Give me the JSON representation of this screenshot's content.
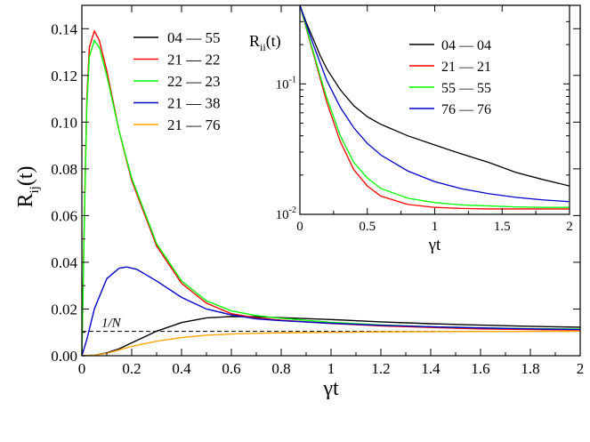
{
  "chart_data": [
    {
      "type": "line",
      "id": "main",
      "xlabel": "γt",
      "ylabel": "R",
      "ylabel_sub": "ij",
      "ylabel_tail": "(t)",
      "xlim": [
        0,
        2
      ],
      "ylim": [
        0,
        0.15
      ],
      "xticks": [
        0,
        0.2,
        0.4,
        0.6,
        0.8,
        1,
        1.2,
        1.4,
        1.6,
        1.8,
        2
      ],
      "xtick_labels": [
        "0",
        "0.2",
        "0.4",
        "0.6",
        "0.8",
        "1",
        "1.2",
        "1.4",
        "1.6",
        "1.8",
        "2"
      ],
      "yticks": [
        0,
        0.02,
        0.04,
        0.06,
        0.08,
        0.1,
        0.12,
        0.14
      ],
      "ytick_labels": [
        "0.00",
        "0.02",
        "0.04",
        "0.06",
        "0.08",
        "0.10",
        "0.12",
        "0.14"
      ],
      "legend_position": "top-left",
      "reference_line": {
        "y": 0.0104,
        "label": "1/N",
        "style": "dashed"
      },
      "series": [
        {
          "name": "04 — 55",
          "color": "#000000",
          "x": [
            0,
            0.05,
            0.1,
            0.15,
            0.2,
            0.3,
            0.4,
            0.5,
            0.6,
            0.7,
            0.8,
            1.0,
            1.2,
            1.4,
            1.6,
            1.8,
            2.0
          ],
          "y": [
            0,
            0.0002,
            0.0012,
            0.003,
            0.0055,
            0.0105,
            0.0142,
            0.0162,
            0.0168,
            0.0167,
            0.0163,
            0.0155,
            0.0145,
            0.0137,
            0.0131,
            0.0126,
            0.0122
          ]
        },
        {
          "name": "21 — 22",
          "color": "#ff0000",
          "x": [
            0,
            0.01,
            0.02,
            0.03,
            0.05,
            0.07,
            0.1,
            0.15,
            0.2,
            0.3,
            0.4,
            0.5,
            0.6,
            0.7,
            0.8,
            1.0,
            1.2,
            1.4,
            1.6,
            1.8,
            2.0
          ],
          "y": [
            0,
            0.06,
            0.11,
            0.132,
            0.139,
            0.135,
            0.122,
            0.096,
            0.075,
            0.047,
            0.031,
            0.0225,
            0.018,
            0.0162,
            0.0152,
            0.0138,
            0.0128,
            0.0121,
            0.0115,
            0.0112,
            0.011
          ]
        },
        {
          "name": "22 — 23",
          "color": "#00ff00",
          "x": [
            0,
            0.01,
            0.02,
            0.03,
            0.05,
            0.07,
            0.1,
            0.15,
            0.2,
            0.3,
            0.4,
            0.5,
            0.6,
            0.7,
            0.8,
            1.0,
            1.2,
            1.4,
            1.6,
            1.8,
            2.0
          ],
          "y": [
            0,
            0.058,
            0.107,
            0.128,
            0.135,
            0.132,
            0.12,
            0.096,
            0.076,
            0.048,
            0.032,
            0.0235,
            0.0192,
            0.0172,
            0.016,
            0.0143,
            0.0132,
            0.0124,
            0.0119,
            0.0116,
            0.0114
          ]
        },
        {
          "name": "21 — 38",
          "color": "#0000cc",
          "x": [
            0,
            0.02,
            0.05,
            0.1,
            0.15,
            0.18,
            0.22,
            0.3,
            0.4,
            0.5,
            0.6,
            0.7,
            0.8,
            1.0,
            1.2,
            1.4,
            1.6,
            1.8,
            2.0
          ],
          "y": [
            0,
            0.007,
            0.02,
            0.033,
            0.0375,
            0.038,
            0.037,
            0.032,
            0.025,
            0.02,
            0.0175,
            0.0158,
            0.015,
            0.0139,
            0.013,
            0.0124,
            0.0119,
            0.0115,
            0.0112
          ]
        },
        {
          "name": "21 — 76",
          "color": "#ffa500",
          "x": [
            0,
            0.05,
            0.1,
            0.15,
            0.2,
            0.3,
            0.4,
            0.5,
            0.6,
            0.7,
            0.8,
            1.0,
            1.2,
            1.4,
            1.6,
            1.8,
            2.0
          ],
          "y": [
            0,
            0.0002,
            0.001,
            0.0025,
            0.004,
            0.0062,
            0.0078,
            0.0088,
            0.0093,
            0.0096,
            0.0098,
            0.01,
            0.0102,
            0.0103,
            0.0104,
            0.0104,
            0.0105
          ]
        }
      ]
    },
    {
      "type": "line",
      "id": "inset",
      "xlabel": "γt",
      "ylabel": "R",
      "ylabel_sub": "ii",
      "ylabel_tail": "(t)",
      "xlim": [
        0,
        2
      ],
      "ylim_log": [
        0.01,
        0.4
      ],
      "yscale": "log",
      "xticks": [
        0,
        0.5,
        1,
        1.5,
        2
      ],
      "xtick_labels": [
        "0",
        "0.5",
        "1",
        "1.5",
        "2"
      ],
      "yticks": [
        0.01,
        0.1
      ],
      "ytick_base": "10",
      "ytick_exponents": [
        "-2",
        "-1"
      ],
      "legend_position": "top-right",
      "series": [
        {
          "name": "04 — 04",
          "color": "#000000",
          "x": [
            0,
            0.05,
            0.1,
            0.15,
            0.2,
            0.3,
            0.4,
            0.5,
            0.6,
            0.8,
            1.0,
            1.2,
            1.4,
            1.6,
            1.8,
            2.0
          ],
          "y": [
            0.4,
            0.29,
            0.22,
            0.165,
            0.13,
            0.09,
            0.068,
            0.056,
            0.049,
            0.04,
            0.034,
            0.029,
            0.025,
            0.021,
            0.0185,
            0.0165
          ]
        },
        {
          "name": "21 — 21",
          "color": "#ff0000",
          "x": [
            0,
            0.05,
            0.1,
            0.15,
            0.2,
            0.3,
            0.4,
            0.5,
            0.6,
            0.8,
            1.0,
            1.2,
            1.4,
            1.6,
            1.8,
            2.0
          ],
          "y": [
            0.4,
            0.26,
            0.17,
            0.11,
            0.072,
            0.036,
            0.022,
            0.0165,
            0.0138,
            0.0119,
            0.0113,
            0.0111,
            0.011,
            0.011,
            0.011,
            0.011
          ]
        },
        {
          "name": "55 — 55",
          "color": "#00ff00",
          "x": [
            0,
            0.05,
            0.1,
            0.15,
            0.2,
            0.3,
            0.4,
            0.5,
            0.6,
            0.8,
            1.0,
            1.2,
            1.4,
            1.6,
            1.8,
            2.0
          ],
          "y": [
            0.4,
            0.265,
            0.175,
            0.115,
            0.078,
            0.04,
            0.025,
            0.019,
            0.0158,
            0.0133,
            0.0123,
            0.0118,
            0.0116,
            0.0114,
            0.0113,
            0.0113
          ]
        },
        {
          "name": "76 — 76",
          "color": "#0000cc",
          "x": [
            0,
            0.05,
            0.1,
            0.15,
            0.2,
            0.3,
            0.4,
            0.5,
            0.6,
            0.8,
            1.0,
            1.2,
            1.4,
            1.6,
            1.8,
            2.0
          ],
          "y": [
            0.4,
            0.28,
            0.2,
            0.145,
            0.106,
            0.066,
            0.046,
            0.035,
            0.0285,
            0.0215,
            0.0178,
            0.0157,
            0.0144,
            0.0135,
            0.0129,
            0.0125
          ]
        }
      ]
    }
  ]
}
